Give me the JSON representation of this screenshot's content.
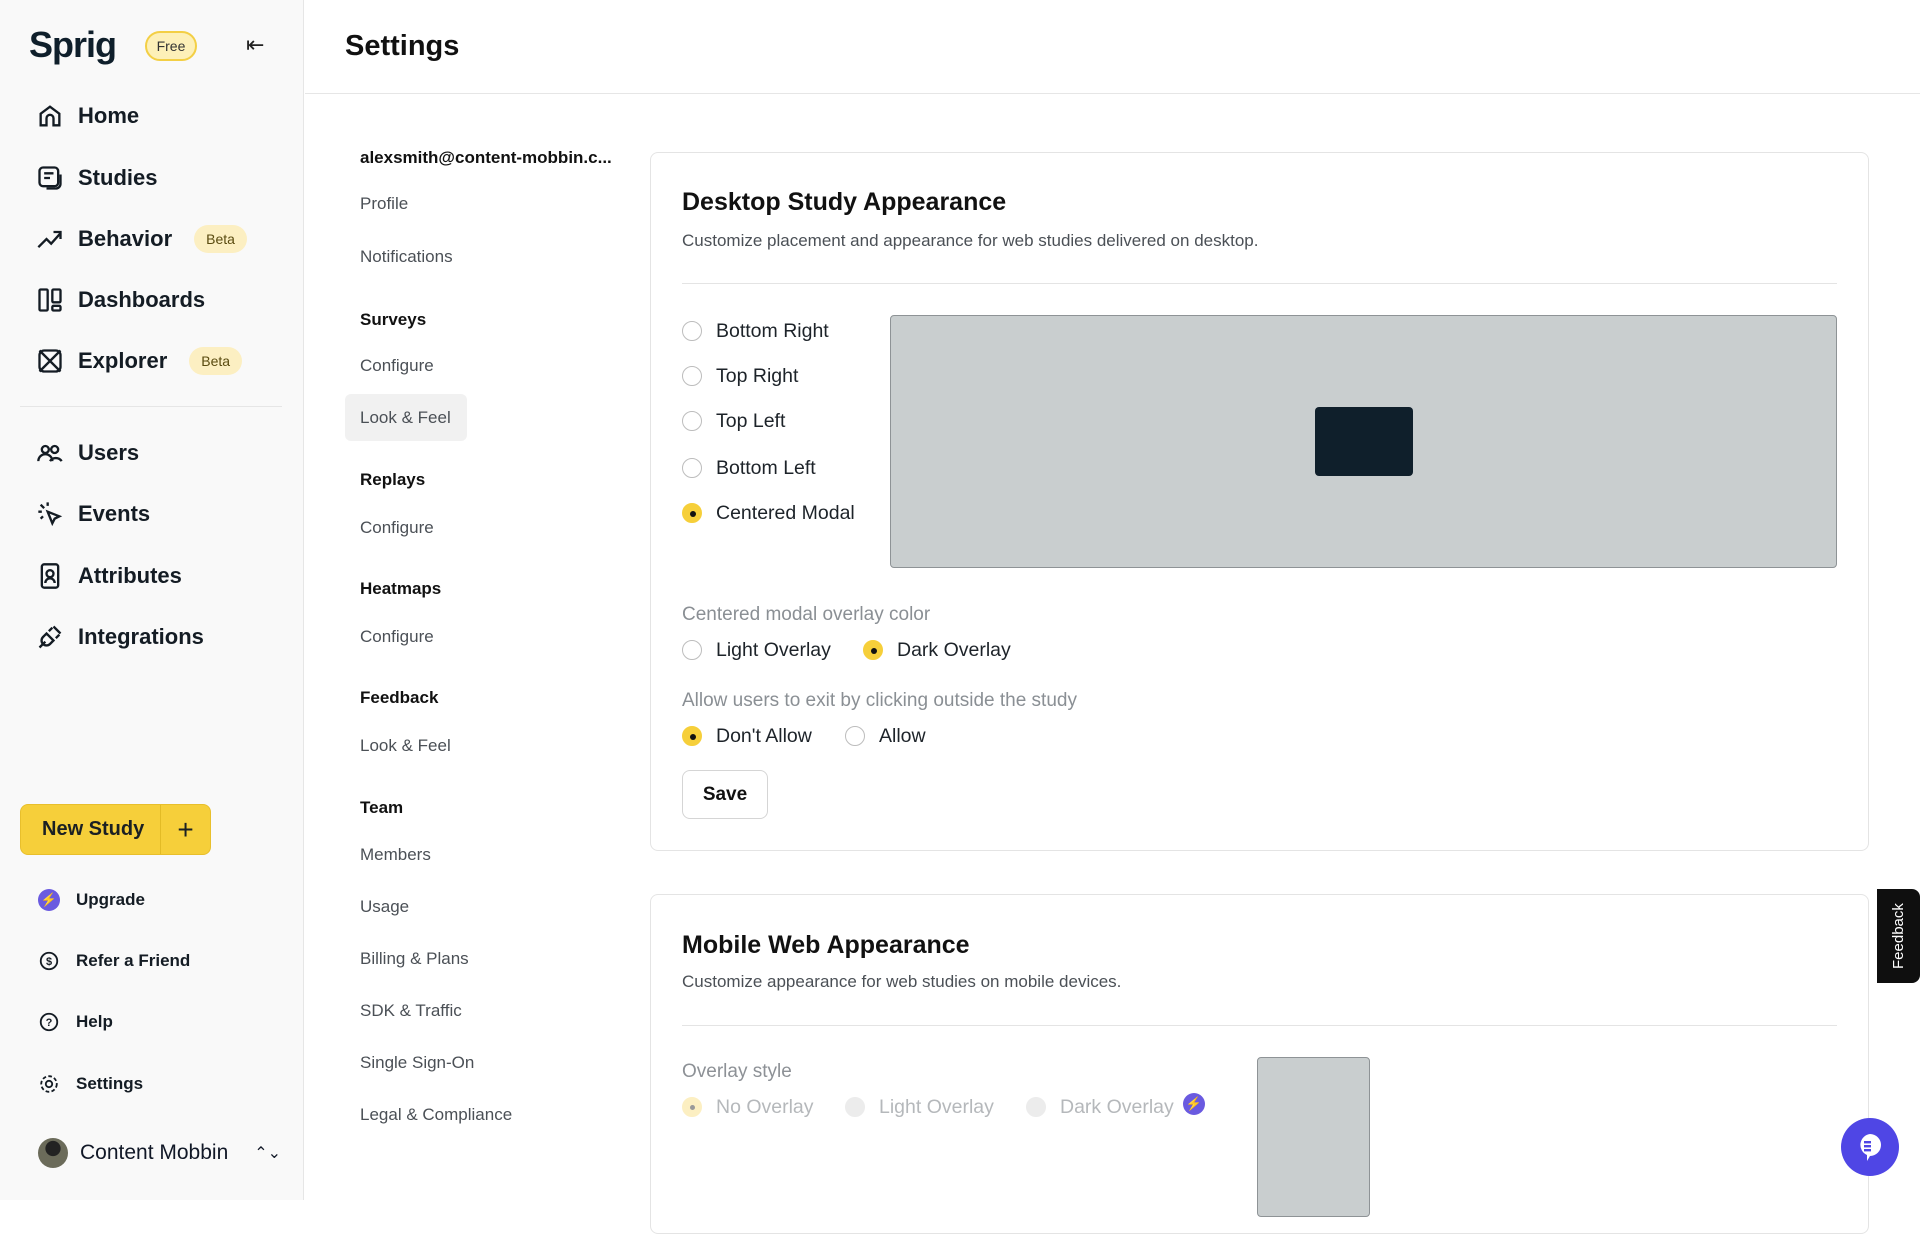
{
  "sidebar": {
    "logo": "Sprig",
    "plan_badge": "Free",
    "nav": [
      {
        "label": "Home",
        "icon": "home-icon"
      },
      {
        "label": "Studies",
        "icon": "studies-icon"
      },
      {
        "label": "Behavior",
        "icon": "trend-icon",
        "badge": "Beta"
      },
      {
        "label": "Dashboards",
        "icon": "dashboard-icon"
      },
      {
        "label": "Explorer",
        "icon": "explorer-icon",
        "badge": "Beta"
      }
    ],
    "nav2": [
      {
        "label": "Users",
        "icon": "users-icon"
      },
      {
        "label": "Events",
        "icon": "events-icon"
      },
      {
        "label": "Attributes",
        "icon": "attributes-icon"
      },
      {
        "label": "Integrations",
        "icon": "plug-icon"
      }
    ],
    "new_study": "New Study",
    "new_study_plus": "+",
    "bottom": [
      {
        "label": "Upgrade",
        "icon": "bolt-icon"
      },
      {
        "label": "Refer a Friend",
        "icon": "dollar-icon"
      },
      {
        "label": "Help",
        "icon": "help-icon"
      },
      {
        "label": "Settings",
        "icon": "gear-icon"
      }
    ],
    "user": "Content Mobbin"
  },
  "header": {
    "title": "Settings"
  },
  "settings_nav": [
    {
      "label": "alexsmith@content-mobbin.c...",
      "type": "heading"
    },
    {
      "label": "Profile"
    },
    {
      "label": "Notifications"
    },
    {
      "label": "Surveys",
      "type": "heading"
    },
    {
      "label": "Configure"
    },
    {
      "label": "Look & Feel",
      "selected": true
    },
    {
      "label": "Replays",
      "type": "heading"
    },
    {
      "label": "Configure"
    },
    {
      "label": "Heatmaps",
      "type": "heading"
    },
    {
      "label": "Configure"
    },
    {
      "label": "Feedback",
      "type": "heading"
    },
    {
      "label": "Look & Feel"
    },
    {
      "label": "Team",
      "type": "heading"
    },
    {
      "label": "Members"
    },
    {
      "label": "Usage"
    },
    {
      "label": "Billing & Plans"
    },
    {
      "label": "SDK & Traffic"
    },
    {
      "label": "Single Sign-On"
    },
    {
      "label": "Legal & Compliance"
    }
  ],
  "desktop": {
    "title": "Desktop Study Appearance",
    "subtitle": "Customize placement and appearance for web studies delivered on desktop.",
    "positions": [
      "Bottom Right",
      "Top Right",
      "Top Left",
      "Bottom Left",
      "Centered Modal"
    ],
    "selected_position": "Centered Modal",
    "overlay_label": "Centered modal overlay color",
    "overlay_options": [
      "Light Overlay",
      "Dark Overlay"
    ],
    "selected_overlay": "Dark Overlay",
    "exit_label": "Allow users to exit by clicking outside the study",
    "exit_options": [
      "Don't Allow",
      "Allow"
    ],
    "selected_exit": "Don't Allow",
    "save": "Save"
  },
  "mobile": {
    "title": "Mobile Web Appearance",
    "subtitle": "Customize appearance for web studies on mobile devices.",
    "overlay_label": "Overlay style",
    "overlay_options": [
      "No Overlay",
      "Light Overlay",
      "Dark Overlay"
    ],
    "selected_overlay": "No Overlay"
  },
  "feedback_tab": "Feedback",
  "colors": {
    "accent": "#f6cf3a",
    "upgrade": "#6a5ae0",
    "chat": "#4f46e5",
    "modal": "#0f1f2b"
  }
}
